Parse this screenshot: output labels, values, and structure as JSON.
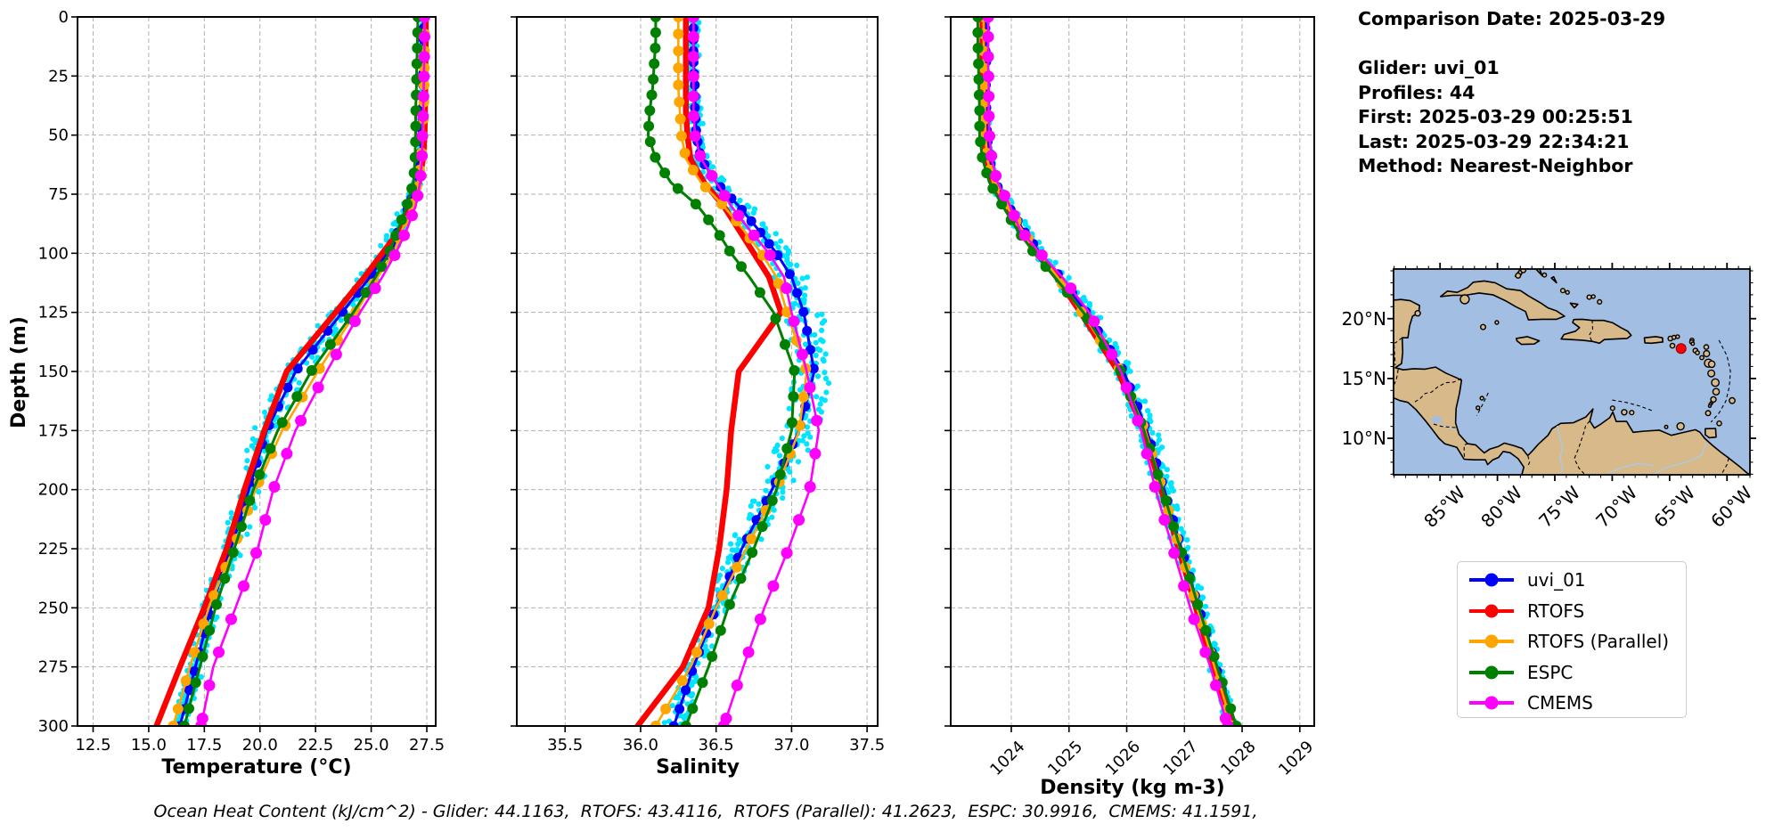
{
  "info_panel": {
    "lines": [
      "Comparison Date: 2025-03-29",
      "",
      "Glider: uvi_01",
      "Profiles: 44",
      "First: 2025-03-29 00:25:51",
      "Last: 2025-03-29 22:34:21",
      "Method: Nearest-Neighbor"
    ]
  },
  "footer": "Ocean Heat Content (kJ/cm^2) - Glider: 44.1163,  RTOFS: 43.4116,  RTOFS (Parallel): 41.2623,  ESPC: 30.9916,  CMEMS: 41.1591,",
  "depth_axis": {
    "label": "Depth (m)",
    "lim": [
      0,
      300
    ],
    "ticks": [
      {
        "v": 0,
        "label": "0"
      },
      {
        "v": 25,
        "label": "25"
      },
      {
        "v": 50,
        "label": "50"
      },
      {
        "v": 75,
        "label": "75"
      },
      {
        "v": 100,
        "label": "100"
      },
      {
        "v": 125,
        "label": "125"
      },
      {
        "v": 150,
        "label": "150"
      },
      {
        "v": 175,
        "label": "175"
      },
      {
        "v": 200,
        "label": "200"
      },
      {
        "v": 225,
        "label": "225"
      },
      {
        "v": 250,
        "label": "250"
      },
      {
        "v": 275,
        "label": "275"
      },
      {
        "v": 300,
        "label": "300"
      }
    ]
  },
  "colors": {
    "grid": "#b0b0b0",
    "spine": "#000000",
    "scatter_cyan": "#00e5ff",
    "figure_bg": "#ffffff"
  },
  "legend": {
    "items": [
      {
        "label": "uvi_01",
        "color": "#0000ff"
      },
      {
        "label": "RTOFS",
        "color": "#ff0000"
      },
      {
        "label": "RTOFS (Parallel)",
        "color": "#ffa500"
      },
      {
        "label": "ESPC",
        "color": "#008000"
      },
      {
        "label": "CMEMS",
        "color": "#ff00ff"
      }
    ]
  },
  "map": {
    "x_tick_labels": [
      "85°W",
      "80°W",
      "75°W",
      "70°W",
      "65°W",
      "60°W"
    ],
    "x_tick_lons": [
      -85,
      -80,
      -75,
      -70,
      -65,
      -60
    ],
    "y_tick_labels": [
      "20°N",
      "15°N",
      "10°N"
    ],
    "y_tick_lats": [
      20,
      15,
      10
    ],
    "extent": {
      "lon_min": -89.05,
      "lon_max": -58.0,
      "lat_min": 6.95,
      "lat_max": 24.15
    },
    "glider_marker": {
      "lon": -64.0,
      "lat": 17.5,
      "color": "#ff0000"
    },
    "ocean_color": "#a2bee3",
    "land_color": "#d8b98a"
  },
  "chart_data": [
    {
      "id": "temperature",
      "type": "line",
      "xlabel": "Temperature (°C)",
      "xlim": [
        11.8,
        27.9
      ],
      "rotate_x_labels": false,
      "x_ticks": [
        {
          "v": 12.5,
          "label": "12.5"
        },
        {
          "v": 15.0,
          "label": "15.0"
        },
        {
          "v": 17.5,
          "label": "17.5"
        },
        {
          "v": 20.0,
          "label": "20.0"
        },
        {
          "v": 22.5,
          "label": "22.5"
        },
        {
          "v": 25.0,
          "label": "25.0"
        },
        {
          "v": 27.5,
          "label": "27.5"
        }
      ],
      "depths": [
        0,
        10,
        20,
        30,
        40,
        50,
        60,
        70,
        80,
        90,
        100,
        110,
        125,
        150,
        175,
        200,
        225,
        250,
        275,
        300
      ],
      "series": [
        {
          "name": "uvi_01",
          "color": "#0000ff",
          "line_width": 3,
          "marker_radius": 5.5,
          "marker_step_m": 8,
          "values": [
            27.35,
            27.35,
            27.34,
            27.33,
            27.31,
            27.28,
            27.2,
            27.05,
            26.7,
            26.25,
            25.7,
            24.95,
            23.7,
            21.6,
            20.3,
            19.5,
            18.7,
            17.8,
            17.1,
            16.4
          ]
        },
        {
          "name": "RTOFS",
          "color": "#ff0000",
          "line_width": 6.5,
          "marker_radius": 0,
          "marker_step_m": 0,
          "values": [
            27.45,
            27.45,
            27.44,
            27.43,
            27.42,
            27.4,
            27.33,
            27.15,
            26.85,
            26.3,
            25.5,
            24.7,
            23.4,
            21.2,
            20.2,
            19.3,
            18.5,
            17.5,
            16.4,
            15.35
          ]
        },
        {
          "name": "RTOFS (Parallel)",
          "color": "#ffa500",
          "line_width": 2.6,
          "marker_radius": 6,
          "marker_step_m": 12,
          "values": [
            27.4,
            27.4,
            27.39,
            27.38,
            27.36,
            27.33,
            27.25,
            27.1,
            26.8,
            26.4,
            26.0,
            25.3,
            24.3,
            22.6,
            21.0,
            19.8,
            18.8,
            17.7,
            16.85,
            16.1
          ]
        },
        {
          "name": "ESPC",
          "color": "#008000",
          "line_width": 3,
          "marker_radius": 6,
          "marker_step_m": 11,
          "values": [
            27.1,
            27.08,
            27.05,
            27.03,
            27.0,
            27.0,
            26.97,
            26.9,
            26.6,
            26.2,
            25.8,
            25.2,
            24.2,
            22.3,
            20.8,
            19.7,
            18.85,
            18.0,
            17.3,
            16.6
          ]
        },
        {
          "name": "CMEMS",
          "color": "#ff00ff",
          "line_width": 2.6,
          "marker_radius": 6.5,
          "marker_step_m": 14,
          "values": [
            27.4,
            27.4,
            27.38,
            27.36,
            27.34,
            27.3,
            27.28,
            27.2,
            27.0,
            26.6,
            26.1,
            25.5,
            24.5,
            23.0,
            21.6,
            20.6,
            19.9,
            18.9,
            17.9,
            17.35
          ]
        }
      ],
      "scatter": {
        "name": "glider raw points",
        "color": "#00e5ff",
        "radius": 3.1,
        "spread_profile": [
          [
            0,
            0.07
          ],
          [
            60,
            0.09
          ],
          [
            90,
            0.42
          ],
          [
            130,
            0.55
          ],
          [
            180,
            0.6
          ],
          [
            250,
            0.45
          ],
          [
            300,
            0.32
          ]
        ]
      }
    },
    {
      "id": "salinity",
      "type": "line",
      "xlabel": "Salinity",
      "xlim": [
        35.18,
        37.57
      ],
      "rotate_x_labels": false,
      "x_ticks": [
        {
          "v": 35.5,
          "label": "35.5"
        },
        {
          "v": 36.0,
          "label": "36.0"
        },
        {
          "v": 36.5,
          "label": "36.5"
        },
        {
          "v": 37.0,
          "label": "37.0"
        },
        {
          "v": 37.5,
          "label": "37.5"
        }
      ],
      "depths": [
        0,
        10,
        20,
        30,
        40,
        50,
        60,
        70,
        80,
        90,
        100,
        110,
        125,
        150,
        175,
        200,
        225,
        250,
        275,
        300
      ],
      "series": [
        {
          "name": "uvi_01",
          "color": "#0000ff",
          "line_width": 3,
          "marker_radius": 5.5,
          "marker_step_m": 8,
          "values": [
            36.35,
            36.35,
            36.35,
            36.36,
            36.36,
            36.37,
            36.4,
            36.5,
            36.65,
            36.78,
            36.9,
            37.0,
            37.08,
            37.15,
            37.05,
            36.87,
            36.67,
            36.5,
            36.35,
            36.22
          ]
        },
        {
          "name": "RTOFS",
          "color": "#ff0000",
          "line_width": 6.5,
          "marker_radius": 0,
          "marker_step_m": 0,
          "values": [
            36.3,
            36.3,
            36.3,
            36.3,
            36.3,
            36.31,
            36.33,
            36.42,
            36.55,
            36.65,
            36.75,
            36.85,
            36.93,
            36.65,
            36.6,
            36.57,
            36.52,
            36.45,
            36.28,
            35.98
          ]
        },
        {
          "name": "RTOFS (Parallel)",
          "color": "#ffa500",
          "line_width": 2.6,
          "marker_radius": 6,
          "marker_step_m": 12,
          "values": [
            36.25,
            36.25,
            36.25,
            36.25,
            36.26,
            36.27,
            36.3,
            36.4,
            36.55,
            36.68,
            36.8,
            36.9,
            36.97,
            37.1,
            37.05,
            36.9,
            36.7,
            36.5,
            36.33,
            36.1
          ]
        },
        {
          "name": "ESPC",
          "color": "#008000",
          "line_width": 3,
          "marker_radius": 6,
          "marker_step_m": 11,
          "values": [
            36.1,
            36.1,
            36.09,
            36.08,
            36.06,
            36.05,
            36.1,
            36.2,
            36.38,
            36.5,
            36.6,
            36.72,
            36.88,
            37.02,
            37.0,
            36.9,
            36.75,
            36.58,
            36.45,
            36.3
          ]
        },
        {
          "name": "CMEMS",
          "color": "#ff00ff",
          "line_width": 2.6,
          "marker_radius": 6.5,
          "marker_step_m": 14,
          "values": [
            36.35,
            36.35,
            36.35,
            36.35,
            36.35,
            36.36,
            36.4,
            36.5,
            36.6,
            36.72,
            36.85,
            36.95,
            37.0,
            37.1,
            37.18,
            37.12,
            36.98,
            36.82,
            36.68,
            36.55
          ]
        }
      ],
      "scatter": {
        "name": "glider raw points",
        "color": "#00e5ff",
        "radius": 3.1,
        "spread_profile": [
          [
            0,
            0.035
          ],
          [
            60,
            0.05
          ],
          [
            90,
            0.1
          ],
          [
            130,
            0.13
          ],
          [
            180,
            0.12
          ],
          [
            250,
            0.08
          ],
          [
            300,
            0.07
          ]
        ]
      }
    },
    {
      "id": "density",
      "type": "line",
      "xlabel": "Density (kg m-3)",
      "xlim": [
        1022.95,
        1029.25
      ],
      "rotate_x_labels": true,
      "x_ticks": [
        {
          "v": 1024,
          "label": "1024"
        },
        {
          "v": 1025,
          "label": "1025"
        },
        {
          "v": 1026,
          "label": "1026"
        },
        {
          "v": 1027,
          "label": "1027"
        },
        {
          "v": 1028,
          "label": "1028"
        },
        {
          "v": 1029,
          "label": "1029"
        }
      ],
      "depths": [
        0,
        10,
        20,
        30,
        40,
        50,
        60,
        70,
        80,
        90,
        100,
        110,
        125,
        150,
        175,
        200,
        225,
        250,
        275,
        300
      ],
      "series": [
        {
          "name": "uvi_01",
          "color": "#0000ff",
          "line_width": 3,
          "marker_radius": 5.5,
          "marker_step_m": 8,
          "values": [
            1023.55,
            1023.55,
            1023.56,
            1023.56,
            1023.57,
            1023.58,
            1023.62,
            1023.72,
            1023.95,
            1024.2,
            1024.5,
            1024.85,
            1025.3,
            1025.95,
            1026.35,
            1026.65,
            1026.95,
            1027.25,
            1027.55,
            1027.8
          ]
        },
        {
          "name": "RTOFS",
          "color": "#ff0000",
          "line_width": 6.5,
          "marker_radius": 0,
          "marker_step_m": 0,
          "values": [
            1023.5,
            1023.5,
            1023.5,
            1023.51,
            1023.52,
            1023.53,
            1023.56,
            1023.66,
            1023.9,
            1024.15,
            1024.45,
            1024.78,
            1025.2,
            1025.85,
            1026.3,
            1026.6,
            1026.9,
            1027.2,
            1027.5,
            1027.85
          ]
        },
        {
          "name": "RTOFS (Parallel)",
          "color": "#ffa500",
          "line_width": 2.6,
          "marker_radius": 6,
          "marker_step_m": 12,
          "values": [
            1023.52,
            1023.52,
            1023.52,
            1023.53,
            1023.54,
            1023.55,
            1023.58,
            1023.68,
            1023.92,
            1024.18,
            1024.48,
            1024.8,
            1025.22,
            1025.9,
            1026.32,
            1026.62,
            1026.92,
            1027.22,
            1027.52,
            1027.83
          ]
        },
        {
          "name": "ESPC",
          "color": "#008000",
          "line_width": 3,
          "marker_radius": 6,
          "marker_step_m": 11,
          "values": [
            1023.42,
            1023.42,
            1023.43,
            1023.44,
            1023.45,
            1023.45,
            1023.5,
            1023.62,
            1023.85,
            1024.1,
            1024.4,
            1024.75,
            1025.25,
            1025.9,
            1026.3,
            1026.62,
            1026.93,
            1027.25,
            1027.57,
            1027.9
          ]
        },
        {
          "name": "CMEMS",
          "color": "#ff00ff",
          "line_width": 2.6,
          "marker_radius": 6.5,
          "marker_step_m": 14,
          "values": [
            1023.6,
            1023.6,
            1023.6,
            1023.61,
            1023.61,
            1023.62,
            1023.66,
            1023.76,
            1023.98,
            1024.15,
            1024.5,
            1024.88,
            1025.35,
            1025.9,
            1026.25,
            1026.5,
            1026.8,
            1027.1,
            1027.45,
            1027.75
          ]
        }
      ],
      "scatter": {
        "name": "glider raw points",
        "color": "#00e5ff",
        "radius": 3.1,
        "spread_profile": [
          [
            0,
            0.05
          ],
          [
            60,
            0.06
          ],
          [
            90,
            0.14
          ],
          [
            130,
            0.18
          ],
          [
            180,
            0.18
          ],
          [
            250,
            0.13
          ],
          [
            300,
            0.11
          ]
        ]
      }
    }
  ]
}
